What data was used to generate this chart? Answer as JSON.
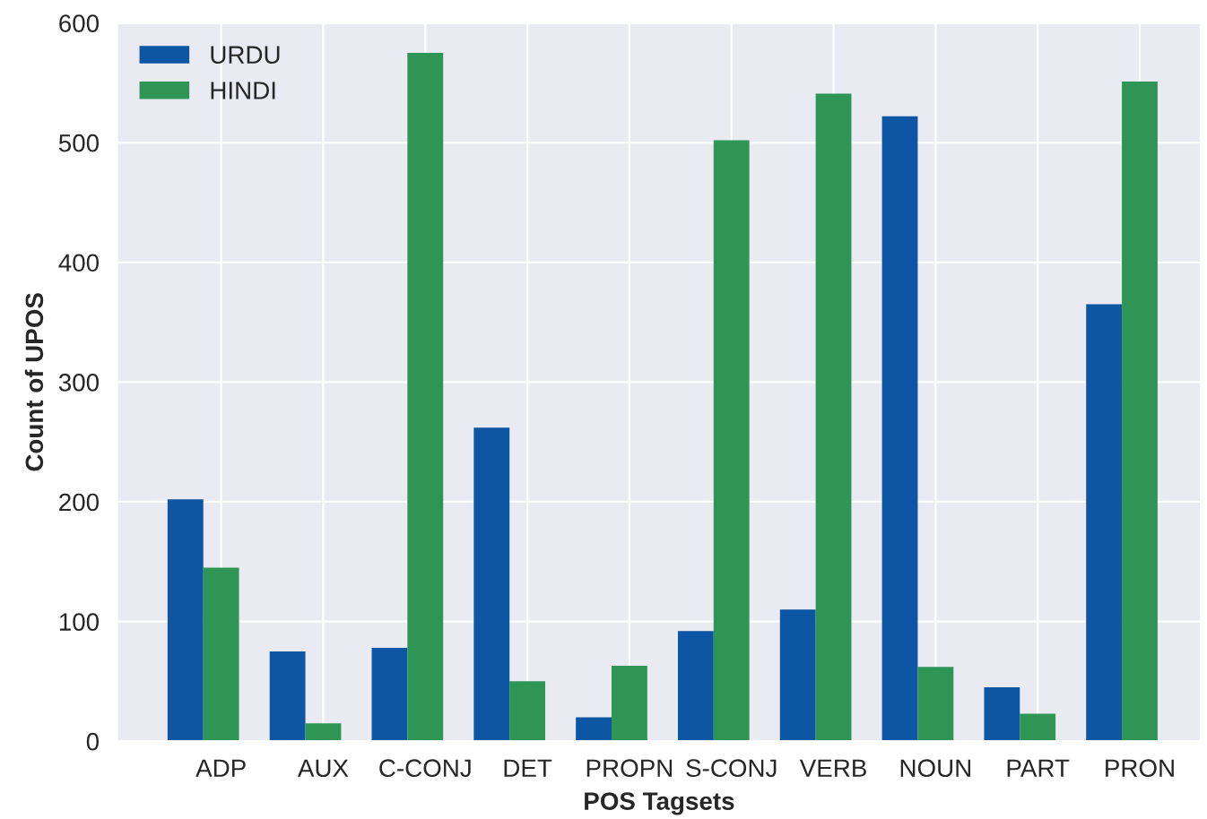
{
  "chart_data": {
    "type": "bar",
    "xlabel": "POS Tagsets",
    "ylabel": "Count of UPOS",
    "categories": [
      "ADP",
      "AUX",
      "C-CONJ",
      "DET",
      "PROPN",
      "S-CONJ",
      "VERB",
      "NOUN",
      "PART",
      "PRON"
    ],
    "series": [
      {
        "name": "URDU",
        "color": "#0d56a3",
        "values": [
          202,
          75,
          78,
          262,
          20,
          92,
          110,
          522,
          45,
          365
        ]
      },
      {
        "name": "HINDI",
        "color": "#2e9554",
        "values": [
          145,
          15,
          575,
          50,
          63,
          502,
          541,
          62,
          23,
          551
        ]
      }
    ],
    "ylim": [
      0,
      600
    ],
    "yticks": [
      0,
      100,
      200,
      300,
      400,
      500,
      600
    ],
    "grid": true,
    "legend": "top left"
  }
}
